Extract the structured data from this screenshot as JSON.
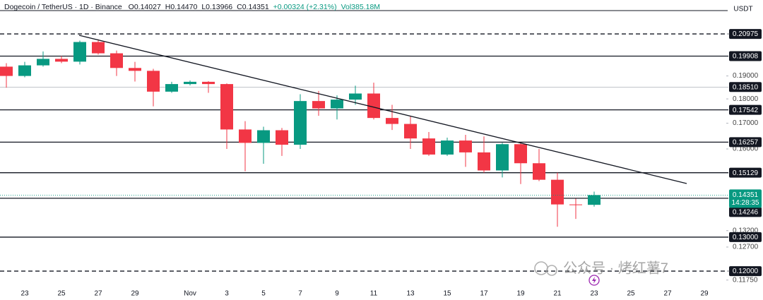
{
  "chart_data": {
    "type": "candlestick",
    "title": "Dogecoin / TetherUS · 1D · Binance",
    "legend_values": [
      "O0.14027",
      "H0.14470",
      "L0.13966",
      "C0.14351",
      "+0.00324 (+2.31%)"
    ],
    "volume_label": "Vol385.18M",
    "currency": "USDT",
    "categories": [
      null,
      "23",
      null,
      "25",
      null,
      "27",
      null,
      "29",
      null,
      null,
      "Nov",
      null,
      "3",
      null,
      "5",
      null,
      "7",
      null,
      "9",
      null,
      "11",
      null,
      "13",
      null,
      "15",
      null,
      "17",
      null,
      "19",
      null,
      "21",
      null,
      "23",
      null,
      "25",
      null,
      "27",
      null,
      "29"
    ],
    "open": [
      0.1942,
      0.19,
      0.1948,
      0.1978,
      0.1965,
      0.2058,
      0.2004,
      0.1936,
      0.1923,
      0.1831,
      0.1864,
      0.1874,
      0.1864,
      0.1675,
      0.1623,
      0.1672,
      0.1616,
      0.1791,
      0.176,
      0.1797,
      0.1823,
      0.1721,
      0.1697,
      0.164,
      0.1579,
      0.1632,
      0.1587,
      0.1521,
      0.1618,
      0.1547,
      0.1488,
      0.1404,
      0.14027,
      null,
      null,
      null,
      null,
      null,
      null
    ],
    "high": [
      0.1958,
      0.1964,
      0.2013,
      0.1991,
      0.2065,
      0.2071,
      0.2017,
      0.1964,
      0.1932,
      0.1874,
      0.188,
      0.1877,
      0.1867,
      0.1708,
      0.1686,
      0.1681,
      0.182,
      0.1834,
      0.1815,
      0.1857,
      0.187,
      0.1775,
      0.173,
      0.1665,
      0.1643,
      0.1654,
      0.1648,
      0.1623,
      0.1623,
      0.16,
      0.1513,
      0.1423,
      0.1447,
      null,
      null,
      null,
      null,
      null,
      null
    ],
    "low": [
      0.1848,
      0.1894,
      0.1942,
      0.1958,
      0.1952,
      0.1998,
      0.19,
      0.1875,
      0.1769,
      0.1826,
      0.1858,
      0.1826,
      0.16,
      0.1518,
      0.1545,
      0.1574,
      0.16,
      0.173,
      0.1715,
      0.1775,
      0.1715,
      0.1673,
      0.16,
      0.1574,
      0.1574,
      0.1534,
      0.1513,
      0.1496,
      0.1473,
      0.1483,
      0.1332,
      0.1357,
      0.13966,
      null,
      null,
      null,
      null,
      null,
      null
    ],
    "close": [
      0.19,
      0.1948,
      0.1978,
      0.1965,
      0.2058,
      0.2004,
      0.1936,
      0.1923,
      0.1831,
      0.1864,
      0.1874,
      0.1864,
      0.1675,
      0.1623,
      0.1672,
      0.1616,
      0.1791,
      0.176,
      0.1797,
      0.1823,
      0.1721,
      0.1697,
      0.164,
      0.1579,
      0.1632,
      0.1587,
      0.1521,
      0.1618,
      0.1547,
      0.1488,
      0.1404,
      0.14027,
      0.14351,
      null,
      null,
      null,
      null,
      null,
      null
    ],
    "up_color": "#089981",
    "down_color": "#f23645",
    "log_scale": true,
    "ylim": [
      0.1159,
      0.2272
    ],
    "yticks": [
      {
        "value": 0.19,
        "label": "0.19000"
      },
      {
        "value": 0.18,
        "label": "0.18000"
      },
      {
        "value": 0.17,
        "label": "0.17000"
      },
      {
        "value": 0.16,
        "label": "0.16000"
      },
      {
        "value": 0.132,
        "label": "0.13200"
      },
      {
        "value": 0.127,
        "label": "0.12700"
      },
      {
        "value": 0.1175,
        "label": "0.11750"
      }
    ],
    "levels": [
      {
        "value": 0.20975,
        "style": "dashed"
      },
      {
        "value": 0.19908,
        "style": "solid"
      },
      {
        "value": 0.1851,
        "label": "0.18510",
        "style": "thin"
      },
      {
        "value": 0.17542,
        "style": "solid"
      },
      {
        "value": 0.16257,
        "style": "solid"
      },
      {
        "value": 0.15129,
        "style": "solid"
      },
      {
        "value": 0.14246,
        "style": "solid"
      },
      {
        "value": 0.13,
        "label": "0.13000",
        "style": "solid"
      },
      {
        "value": 0.12,
        "label": "0.12000",
        "style": "dashed"
      }
    ],
    "last_price": {
      "value": 0.14351,
      "countdown": "14:28:35"
    }
  },
  "watermark": "公众号 · 烤红薯7"
}
